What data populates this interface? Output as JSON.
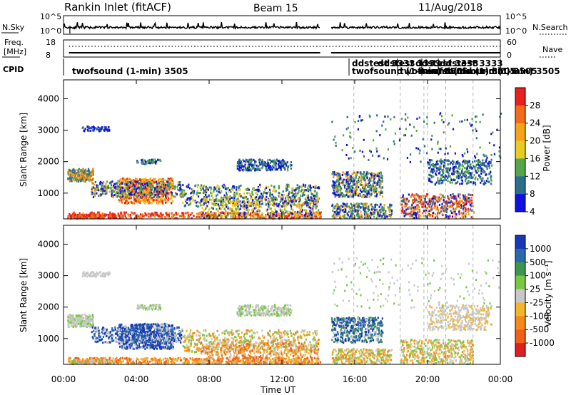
{
  "header": {
    "station": "Rankin Inlet (fitACF)",
    "beam": "Beam 15",
    "date": "11/Aug/2018"
  },
  "panels": {
    "nsky": {
      "label": "N.Sky",
      "ticks": [
        "10^5",
        "10^0"
      ],
      "right_label": "N.Search",
      "right_ticks": [
        "10^5",
        "10^0"
      ]
    },
    "freq": {
      "label_line1": "Freq.",
      "label_line2": "[MHz]",
      "ticks": [
        "18",
        "8"
      ],
      "right_label": "Nave",
      "right_ticks": [
        "60",
        "0"
      ]
    },
    "cpid": {
      "label": "CPID",
      "entries": [
        "twofsound (1-min) 3505",
        "ddstest 3333",
        "twofsound (1-min) 3505",
        "ddstest 3333",
        "twofsound (1-min) 3505",
        "ddstest 3333",
        "twofsound (1-min) 3505",
        "ddstest 3333",
        "twofsound (1-min) 3505"
      ]
    }
  },
  "chart_data": [
    {
      "type": "heatmap",
      "name": "power",
      "ylabel": "Slant Range [km]",
      "ylim": [
        180,
        4600
      ],
      "yticks": [
        1000,
        2000,
        3000,
        4000
      ],
      "colorbar": {
        "label": "Power [dB]",
        "ticks": [
          "28",
          "24",
          "20",
          "16",
          "12",
          "8",
          "4"
        ],
        "colors": [
          "#e8201e",
          "#f26a1a",
          "#f5a318",
          "#e7cc22",
          "#55a549",
          "#2d6e8c",
          "#1010e0"
        ]
      }
    },
    {
      "type": "heatmap",
      "name": "velocity",
      "ylabel": "Slant Range [km]",
      "ylim": [
        180,
        4600
      ],
      "yticks": [
        1000,
        2000,
        3000,
        4000
      ],
      "colorbar": {
        "label": "Velocity [m s⁻¹]",
        "ticks": [
          "1000",
          "500",
          "100",
          "25",
          "-25",
          "-100",
          "-500",
          "-1000"
        ],
        "colors": [
          "#1838b8",
          "#2a6aaa",
          "#3c9650",
          "#79c842",
          "#c8c8c8",
          "#f5b52a",
          "#f58a1c",
          "#f06017",
          "#e02020"
        ]
      }
    }
  ],
  "xaxis": {
    "label": "Time UT",
    "ticks": [
      "00:00",
      "04:00",
      "08:00",
      "12:00",
      "16:00",
      "20:00",
      "00:00"
    ]
  }
}
